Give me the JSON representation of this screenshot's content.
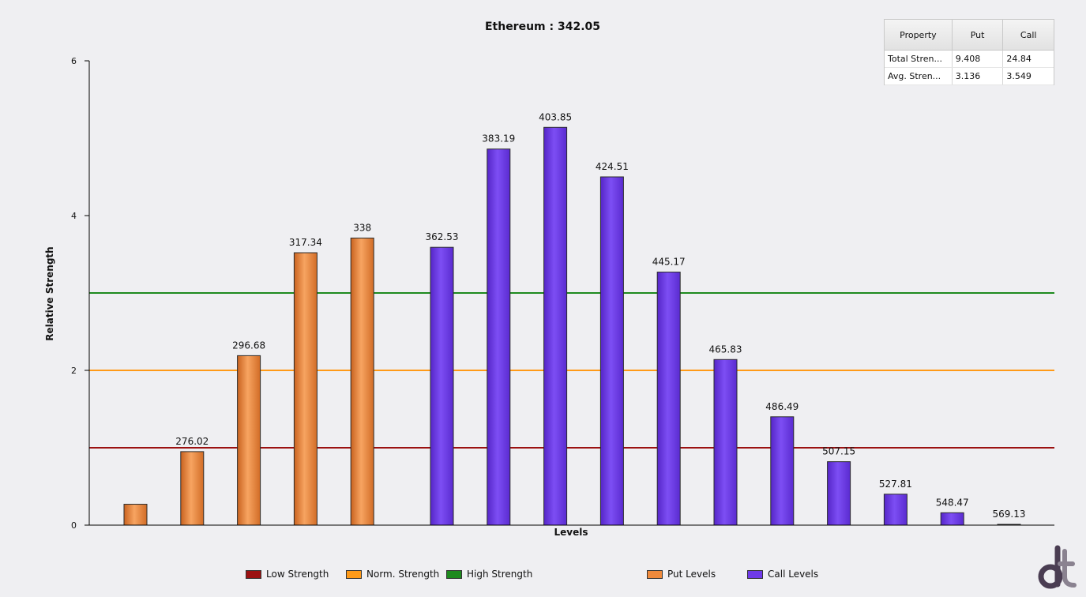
{
  "chart_data": {
    "type": "bar",
    "title": "Ethereum : 342.05",
    "xlabel": "Levels",
    "ylabel": "Relative Strength",
    "ylim": [
      0,
      6
    ],
    "yticks": [
      "0",
      "2",
      "4",
      "6"
    ],
    "grid": false,
    "legend_position": "bottom",
    "series": [
      {
        "name": "Put Levels",
        "color": "#f08a3c",
        "categories": [
          "",
          "276.02",
          "296.68",
          "317.34",
          "338"
        ],
        "values": [
          0.27,
          0.95,
          2.19,
          3.52,
          3.71
        ]
      },
      {
        "name": "Call Levels",
        "color": "#6f3ae8",
        "categories": [
          "362.53",
          "383.19",
          "403.85",
          "424.51",
          "445.17",
          "465.83",
          "486.49",
          "507.15",
          "527.81",
          "548.47",
          "569.13"
        ],
        "values": [
          3.59,
          4.86,
          5.14,
          4.5,
          3.27,
          2.14,
          1.4,
          0.82,
          0.4,
          0.16,
          0.01
        ]
      }
    ],
    "reference_lines": [
      {
        "name": "Low Strength",
        "value": 1,
        "color": "#9b1111"
      },
      {
        "name": "Norm. Strength",
        "value": 2,
        "color": "#ff9a18"
      },
      {
        "name": "High Strength",
        "value": 3,
        "color": "#1e8a1e"
      }
    ]
  },
  "table": {
    "headers": [
      "Property",
      "Put",
      "Call"
    ],
    "rows": [
      [
        "Total Stren...",
        "9.408",
        "24.84"
      ],
      [
        "Avg. Stren...",
        "3.136",
        "3.549"
      ]
    ]
  },
  "legend": {
    "low": "Low Strength",
    "norm": "Norm. Strength",
    "high": "High Strength",
    "put": "Put Levels",
    "call": "Call Levels"
  },
  "colors": {
    "low": "#9b1111",
    "norm": "#ff9a18",
    "high": "#1e8a1e",
    "put": "#f08a3c",
    "call": "#6f3ae8"
  },
  "logo": {
    "icon": "dt-logo-icon"
  }
}
